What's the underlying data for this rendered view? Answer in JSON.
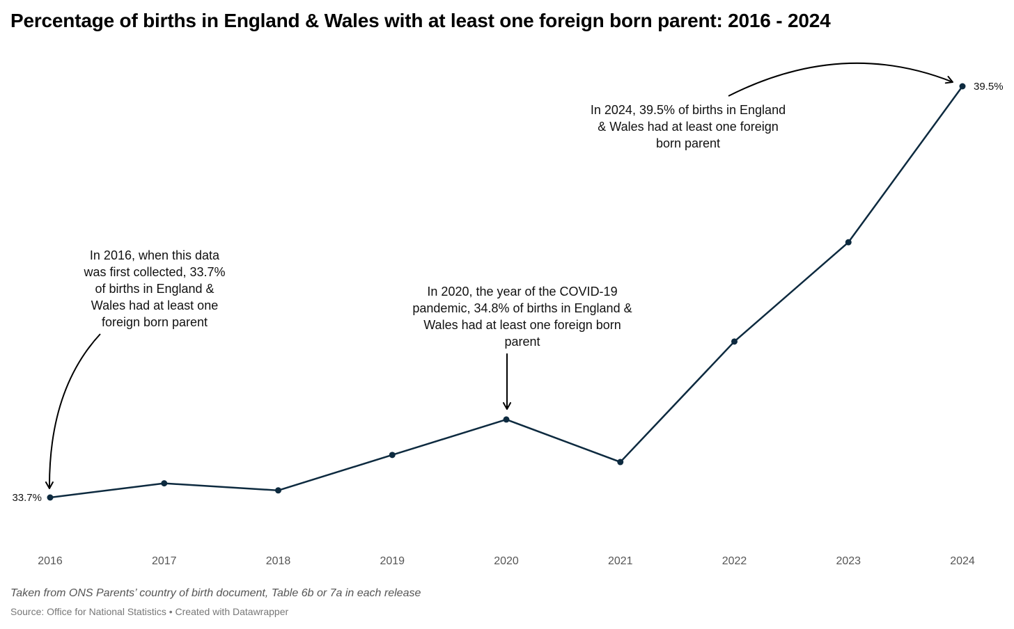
{
  "title": "Percentage of births in England & Wales with at least one foreign born parent: 2016 - 2024",
  "footer": {
    "note": "Taken from ONS Parents’ country of birth document, Table 6b or 7a in each release",
    "source": "Source: Office for National Statistics • Created with Datawrapper"
  },
  "colors": {
    "line": "#0d2a3f",
    "point": "#0d2a3f",
    "arrow": "#000000"
  },
  "chart_data": {
    "type": "line",
    "title": "Percentage of births in England & Wales with at least one foreign born parent: 2016 - 2024",
    "xlabel": "",
    "ylabel": "",
    "x": [
      "2016",
      "2017",
      "2018",
      "2019",
      "2020",
      "2021",
      "2022",
      "2023",
      "2024"
    ],
    "series": [
      {
        "values": [
          33.7,
          33.9,
          33.8,
          34.3,
          34.8,
          34.2,
          35.9,
          37.3,
          39.5
        ]
      }
    ],
    "ylim": [
      33.0,
      39.9
    ],
    "grid": false,
    "legend": "none",
    "value_labels": [
      {
        "x": "2016",
        "text": "33.7%"
      },
      {
        "x": "2024",
        "text": "39.5%"
      }
    ],
    "annotations": [
      {
        "x": "2016",
        "lines": [
          "In 2016, when this data",
          "was first collected, 33.7%",
          "of births in England &",
          "Wales had at least one",
          "foreign born parent"
        ]
      },
      {
        "x": "2020",
        "lines": [
          "In 2020, the year of the COVID-19",
          "pandemic, 34.8% of births in England &",
          "Wales had at least one foreign born",
          "parent"
        ]
      },
      {
        "x": "2024",
        "lines": [
          "In 2024, 39.5% of births in England",
          "& Wales had at least one foreign",
          "born parent"
        ]
      }
    ]
  }
}
